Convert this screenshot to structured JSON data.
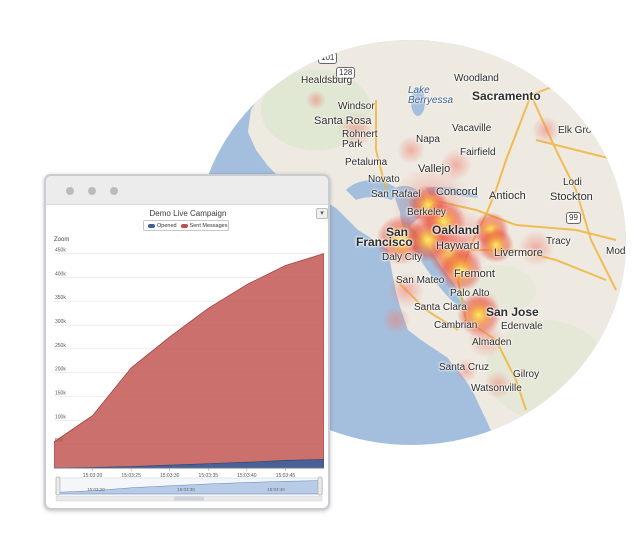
{
  "map": {
    "water_color": "#a4bfdd",
    "land_color": "#eeeae1",
    "heat_color": "#e8473a",
    "places": {
      "healdsburg": "Healdsburg",
      "windsor": "Windsor",
      "santa_rosa": "Santa Rosa",
      "rohnert_park": "Rohnert\nPark",
      "lake_berryessa": "Lake\nBerryessa",
      "woodland": "Woodland",
      "sacramento": "Sacramento",
      "napa": "Napa",
      "vacaville": "Vacaville",
      "elk_grove": "Elk Grove",
      "fairfield": "Fairfield",
      "petaluma": "Petaluma",
      "vallejo": "Vallejo",
      "lodi": "Lodi",
      "novato": "Novato",
      "concord": "Concord",
      "san_rafael": "San Rafael",
      "antioch": "Antioch",
      "stockton": "Stockton",
      "berkeley": "Berkeley",
      "san_francisco_1": "San",
      "san_francisco_2": "Francisco",
      "oakland": "Oakland",
      "tracy": "Tracy",
      "modesto": "Mode",
      "hayward": "Hayward",
      "daly_city": "Daly City",
      "livermore": "Livermore",
      "fremont": "Fremont",
      "san_mateo": "San Mateo",
      "palo_alto": "Palo Alto",
      "santa_clara": "Santa Clara",
      "san_jose": "San Jose",
      "cambrian": "Cambrian",
      "edenvale": "Edenvale",
      "almaden": "Almaden",
      "santa_cruz": "Santa Cruz",
      "gilroy": "Gilroy",
      "watsonville": "Watsonville"
    },
    "shields": {
      "r101": "101",
      "r128": "128",
      "r99": "99"
    }
  },
  "window": {
    "dots_color": "#b8bcc1"
  },
  "chart": {
    "download_icon": "download-icon",
    "zoom_label": "Zoom",
    "navigator_labels": [
      "15:03:20",
      "15:03:30",
      "15:03:40"
    ]
  },
  "chart_data": {
    "type": "area",
    "title": "Demo Live Campaign",
    "xlabel": "",
    "ylabel": "",
    "x": [
      "15:03:18",
      "15:03:20",
      "15:03:25",
      "15:03:30",
      "15:03:35",
      "15:03:40",
      "15:03:45",
      "15:03:47"
    ],
    "x_tick_labels": [
      "15:03:20",
      "15:03:25",
      "15:03:30",
      "15:03:35",
      "15:03:40",
      "15:03:45"
    ],
    "y_tick_labels": [
      "50k",
      "100k",
      "150k",
      "200k",
      "250k",
      "300k",
      "350k",
      "400k",
      "450k"
    ],
    "ylim": [
      0,
      470000
    ],
    "series": [
      {
        "name": "Opened",
        "color": "#3d5f9a",
        "values": [
          0,
          1000,
          3000,
          6000,
          9000,
          12000,
          16000,
          18000
        ]
      },
      {
        "name": "Sent Messages",
        "color": "#c0504d",
        "values": [
          55000,
          110000,
          210000,
          275000,
          335000,
          385000,
          425000,
          450000
        ]
      }
    ],
    "grid": true,
    "legend": "top-center"
  }
}
